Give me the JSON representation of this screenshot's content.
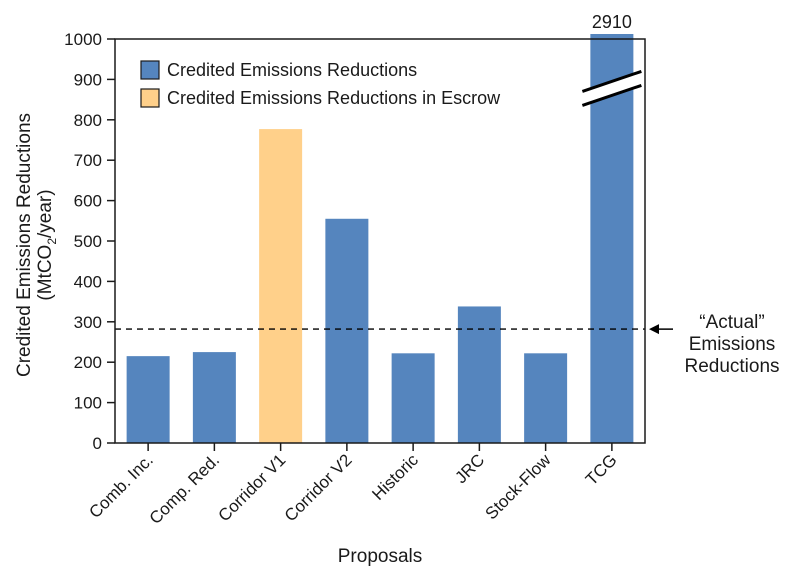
{
  "chart_data": {
    "type": "bar",
    "xlabel": "Proposals",
    "ylabel_line1": "Credited Emissions Reductions",
    "ylabel_line2_prefix": "(MtCO",
    "ylabel_line2_sub": "2",
    "ylabel_line2_suffix": "/year)",
    "ylim": [
      0,
      1000
    ],
    "yticks": [
      0,
      100,
      200,
      300,
      400,
      500,
      600,
      700,
      800,
      900,
      1000
    ],
    "categories": [
      "Comb. Inc.",
      "Comp. Red.",
      "Corridor V1",
      "Corridor V2",
      "Historic",
      "JRC",
      "Stock-Flow",
      "TCG"
    ],
    "values": [
      215,
      225,
      777,
      555,
      222,
      338,
      222,
      2910
    ],
    "series_by_category": [
      "credited",
      "credited",
      "escrow",
      "credited",
      "credited",
      "credited",
      "credited",
      "credited"
    ],
    "value_labels": [
      "",
      "",
      "",
      "",
      "",
      "",
      "",
      "2910"
    ],
    "axis_break_category": "TCG",
    "legend": {
      "position": "top-left",
      "entries": [
        {
          "key": "credited",
          "label": "Credited Emissions Reductions",
          "color": "#5585BE"
        },
        {
          "key": "escrow",
          "label": "Credited Emissions Reductions in Escrow",
          "color": "#FFD08A"
        }
      ]
    },
    "reference_line": {
      "value": 282,
      "style": "dashed",
      "annotation": [
        "“Actual”",
        "Emissions",
        "Reductions"
      ]
    },
    "grid": false
  },
  "colors": {
    "credited": "#5585BE",
    "escrow": "#FFD08A",
    "axis": "#1a1a1a"
  }
}
